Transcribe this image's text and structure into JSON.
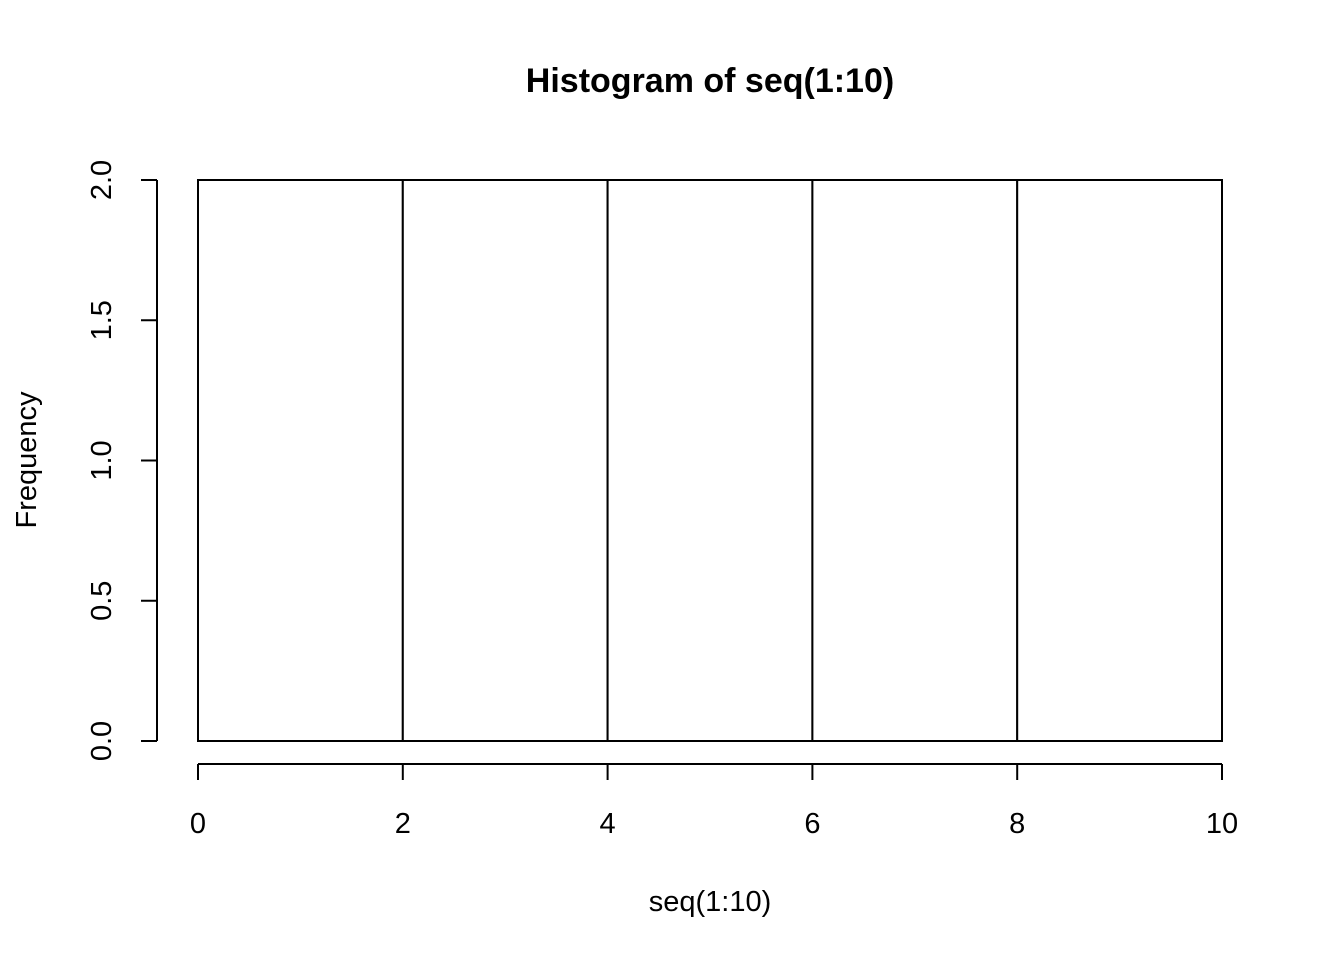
{
  "chart_data": {
    "type": "bar",
    "title": "Histogram of seq(1:10)",
    "xlabel": "seq(1:10)",
    "ylabel": "Frequency",
    "bins": [
      {
        "x0": 0,
        "x1": 2,
        "count": 2
      },
      {
        "x0": 2,
        "x1": 4,
        "count": 2
      },
      {
        "x0": 4,
        "x1": 6,
        "count": 2
      },
      {
        "x0": 6,
        "x1": 8,
        "count": 2
      },
      {
        "x0": 8,
        "x1": 10,
        "count": 2
      }
    ],
    "xlim": [
      0,
      10
    ],
    "ylim": [
      0,
      2
    ],
    "xticks": [
      0,
      2,
      4,
      6,
      8,
      10
    ],
    "xtick_labels": [
      "0",
      "2",
      "4",
      "6",
      "8",
      "10"
    ],
    "yticks": [
      0,
      0.5,
      1,
      1.5,
      2
    ],
    "ytick_labels": [
      "0.0",
      "0.5",
      "1.0",
      "1.5",
      "2.0"
    ],
    "grid": false,
    "colors": {
      "bar_fill": "#ffffff",
      "bar_stroke": "#000000",
      "background": "#ffffff"
    }
  }
}
